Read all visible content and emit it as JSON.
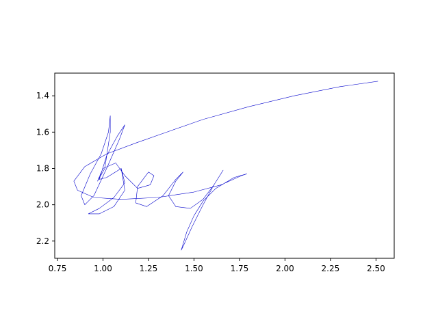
{
  "chart_data": {
    "type": "line",
    "title": "",
    "xlabel": "",
    "ylabel": "",
    "xlim": [
      0.735,
      2.6
    ],
    "ylim": [
      2.295,
      1.275
    ],
    "y_inverted": true,
    "grid": false,
    "x_ticks": [
      0.75,
      1.0,
      1.25,
      1.5,
      1.75,
      2.0,
      2.25,
      2.5
    ],
    "x_tick_labels": [
      "0.75",
      "1.00",
      "1.25",
      "1.50",
      "1.75",
      "2.00",
      "2.25",
      "2.50"
    ],
    "y_ticks": [
      1.4,
      1.6,
      1.8,
      2.0,
      2.2
    ],
    "y_tick_labels": [
      "1.4",
      "1.6",
      "1.8",
      "2.0",
      "2.2"
    ],
    "series": [
      {
        "color": "#0000cc",
        "strokes": [
          [
            [
              2.51,
              1.32
            ],
            [
              2.3,
              1.35
            ],
            [
              2.05,
              1.4
            ],
            [
              1.8,
              1.46
            ],
            [
              1.55,
              1.53
            ],
            [
              1.35,
              1.6
            ],
            [
              1.18,
              1.66
            ],
            [
              1.02,
              1.72
            ],
            [
              0.9,
              1.79
            ],
            [
              0.84,
              1.87
            ],
            [
              0.86,
              1.92
            ],
            [
              0.95,
              1.96
            ],
            [
              1.1,
              1.97
            ],
            [
              1.3,
              1.96
            ],
            [
              1.5,
              1.93
            ],
            [
              1.65,
              1.89
            ],
            [
              1.76,
              1.84
            ],
            [
              1.79,
              1.83
            ],
            [
              1.72,
              1.85
            ],
            [
              1.62,
              1.91
            ],
            [
              1.55,
              1.98
            ],
            [
              1.5,
              2.06
            ],
            [
              1.46,
              2.15
            ],
            [
              1.43,
              2.25
            ],
            [
              1.44,
              2.23
            ],
            [
              1.49,
              2.12
            ],
            [
              1.55,
              2.0
            ],
            [
              1.61,
              1.89
            ],
            [
              1.66,
              1.81
            ],
            [
              1.61,
              1.89
            ],
            [
              1.55,
              1.97
            ],
            [
              1.48,
              2.02
            ],
            [
              1.4,
              2.01
            ],
            [
              1.36,
              1.95
            ],
            [
              1.4,
              1.87
            ],
            [
              1.44,
              1.82
            ],
            [
              1.4,
              1.86
            ],
            [
              1.33,
              1.95
            ],
            [
              1.24,
              2.01
            ],
            [
              1.18,
              1.99
            ],
            [
              1.19,
              1.9
            ],
            [
              1.25,
              1.82
            ],
            [
              1.28,
              1.84
            ],
            [
              1.26,
              1.89
            ],
            [
              1.19,
              1.91
            ],
            [
              1.12,
              1.84
            ],
            [
              1.07,
              1.77
            ],
            [
              1.0,
              1.8
            ],
            [
              0.97,
              1.87
            ],
            [
              1.01,
              1.8
            ],
            [
              1.04,
              1.6
            ],
            [
              1.04,
              1.51
            ],
            [
              1.03,
              1.6
            ],
            [
              0.99,
              1.72
            ],
            [
              0.93,
              1.83
            ],
            [
              0.88,
              1.95
            ],
            [
              0.9,
              2.0
            ],
            [
              0.95,
              1.95
            ],
            [
              1.02,
              1.8
            ],
            [
              1.09,
              1.64
            ],
            [
              1.12,
              1.56
            ],
            [
              1.08,
              1.62
            ],
            [
              1.02,
              1.73
            ],
            [
              0.98,
              1.86
            ],
            [
              1.02,
              1.85
            ],
            [
              1.1,
              1.8
            ],
            [
              1.12,
              1.92
            ],
            [
              1.06,
              2.01
            ],
            [
              0.98,
              2.05
            ],
            [
              0.92,
              2.05
            ],
            [
              0.98,
              2.02
            ],
            [
              1.06,
              1.96
            ],
            [
              1.12,
              1.88
            ],
            [
              1.1,
              1.8
            ]
          ]
        ]
      }
    ]
  }
}
